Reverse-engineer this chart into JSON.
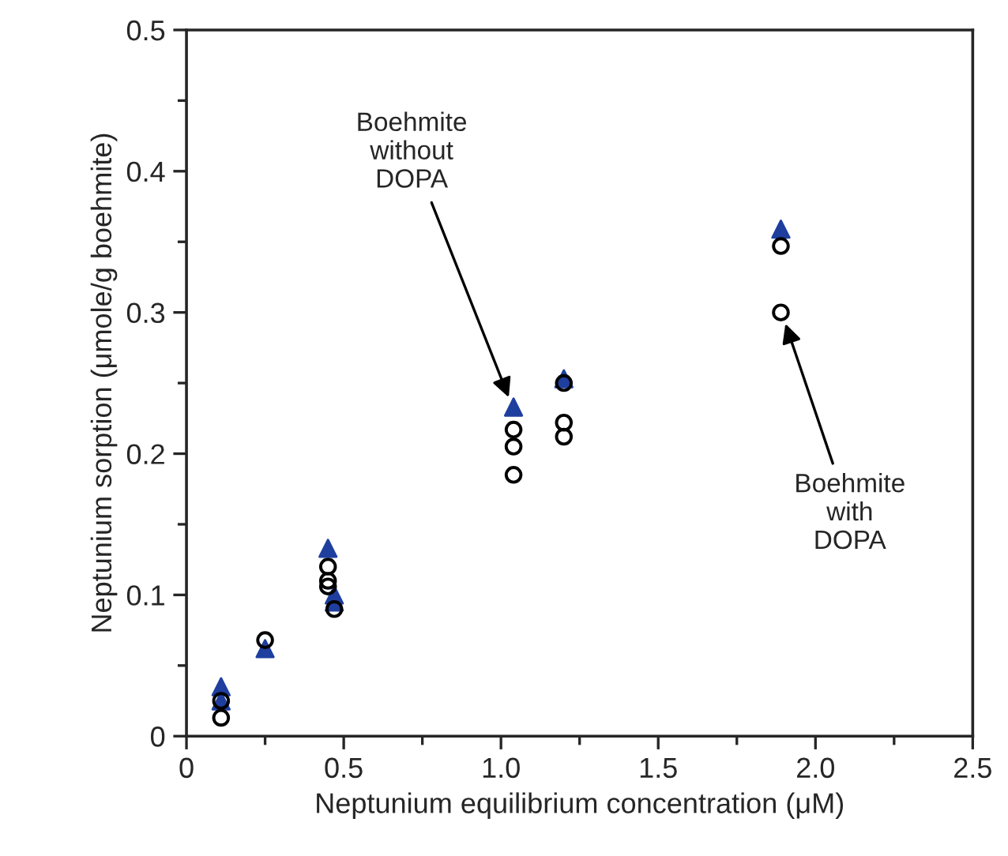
{
  "chart_data": {
    "type": "scatter",
    "xlabel": "Neptunium equilibrium concentration (μM)",
    "ylabel": "Neptunium sorption (μmole/g boehmite)",
    "series": [
      {
        "color": "#1f3f9f",
        "marker": "triangle",
        "x": [
          0.11,
          0.11,
          0.25,
          0.45,
          0.47,
          0.47,
          1.04,
          1.2,
          1.89
        ],
        "values": [
          0.035,
          0.025,
          0.062,
          0.133,
          0.1,
          0.095,
          0.233,
          0.253,
          0.359
        ]
      },
      {
        "color": "#000000",
        "marker": "circle",
        "x": [
          0.11,
          0.11,
          0.25,
          0.45,
          0.45,
          0.45,
          0.47,
          1.04,
          1.04,
          1.04,
          1.2,
          1.2,
          1.2,
          1.89,
          1.89
        ],
        "values": [
          0.013,
          0.025,
          0.068,
          0.12,
          0.11,
          0.106,
          0.09,
          0.217,
          0.205,
          0.185,
          0.25,
          0.222,
          0.212,
          0.347,
          0.3
        ]
      }
    ],
    "annotations": [
      {
        "text": "Boehmite\nwithout\nDOPA",
        "x": 1.03,
        "y": 0.237
      },
      {
        "text": "Boehmite\nwith\nDOPA",
        "x": 1.9,
        "y": 0.295
      }
    ],
    "xlim": [
      0,
      2.5
    ],
    "ylim": [
      0,
      0.5
    ],
    "xticks": [
      {
        "value": 0,
        "label": "0"
      },
      {
        "value": 0.5,
        "label": "0.5"
      },
      {
        "value": 1.0,
        "label": "1.0"
      },
      {
        "value": 1.5,
        "label": "1.5"
      },
      {
        "value": 2.0,
        "label": "2.0"
      },
      {
        "value": 2.5,
        "label": "2.5"
      }
    ],
    "yticks": [
      0,
      0.1,
      0.2,
      0.3,
      0.4,
      0.5
    ],
    "grid": false,
    "legend": false
  }
}
